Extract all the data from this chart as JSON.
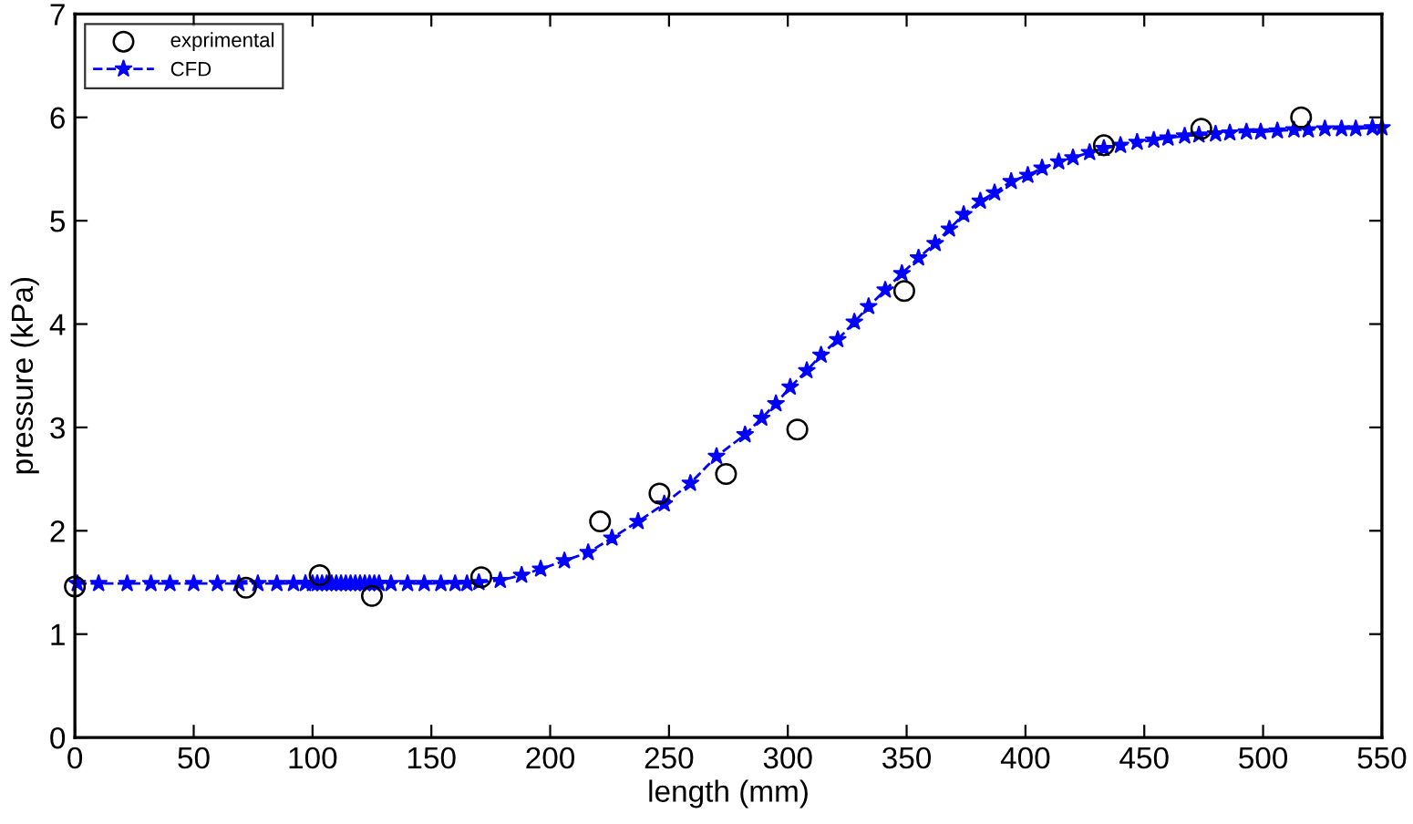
{
  "chart_data": {
    "type": "line",
    "xlabel": "length (mm)",
    "ylabel": "pressure (kPa)",
    "xlim": [
      0,
      550
    ],
    "xticks": [
      0,
      50,
      100,
      150,
      200,
      250,
      300,
      350,
      400,
      450,
      500,
      550
    ],
    "ylim": [
      0,
      7
    ],
    "yticks": [
      0,
      1,
      2,
      3,
      4,
      5,
      6,
      7
    ],
    "grid": false,
    "legend": "top left",
    "series": [
      {
        "name": "exprimental",
        "type": "scatter",
        "marker": "circle",
        "color": "#000000",
        "x": [
          0,
          72,
          103,
          125,
          171,
          221,
          246,
          274,
          304,
          349,
          433,
          474,
          516
        ],
        "values": [
          1.46,
          1.45,
          1.57,
          1.37,
          1.55,
          2.09,
          2.36,
          2.55,
          2.98,
          4.32,
          5.73,
          5.89,
          6.0
        ]
      },
      {
        "name": "CFD",
        "marker": "star",
        "line_style": "dashed",
        "color": "#0000ff",
        "x": [
          1,
          10,
          22,
          32,
          40,
          50,
          60,
          69,
          77,
          85,
          92,
          97,
          100,
          102,
          104,
          106,
          108,
          110,
          112,
          114,
          116,
          118,
          120,
          122,
          124,
          126,
          128,
          133,
          140,
          147,
          154,
          160,
          165,
          170,
          179,
          188,
          196,
          206,
          216,
          226,
          237,
          248,
          259,
          270,
          282,
          289,
          295,
          301,
          308,
          314,
          321,
          328,
          334,
          341,
          348,
          355,
          362,
          368,
          374,
          381,
          387,
          394,
          401,
          407,
          414,
          420,
          427,
          433,
          440,
          447,
          454,
          460,
          467,
          473,
          480,
          486,
          493,
          499,
          506,
          513,
          519,
          526,
          533,
          539,
          546,
          550
        ],
        "values": [
          1.49,
          1.49,
          1.49,
          1.49,
          1.49,
          1.49,
          1.49,
          1.49,
          1.49,
          1.49,
          1.49,
          1.49,
          1.49,
          1.49,
          1.49,
          1.49,
          1.49,
          1.49,
          1.49,
          1.49,
          1.49,
          1.49,
          1.49,
          1.49,
          1.49,
          1.49,
          1.49,
          1.49,
          1.49,
          1.49,
          1.49,
          1.49,
          1.49,
          1.5,
          1.52,
          1.57,
          1.63,
          1.71,
          1.79,
          1.93,
          2.09,
          2.26,
          2.46,
          2.72,
          2.93,
          3.09,
          3.23,
          3.39,
          3.55,
          3.7,
          3.85,
          4.02,
          4.17,
          4.33,
          4.49,
          4.64,
          4.78,
          4.92,
          5.06,
          5.19,
          5.27,
          5.38,
          5.44,
          5.51,
          5.57,
          5.61,
          5.66,
          5.7,
          5.73,
          5.76,
          5.78,
          5.8,
          5.82,
          5.83,
          5.84,
          5.85,
          5.86,
          5.86,
          5.87,
          5.88,
          5.88,
          5.89,
          5.89,
          5.89,
          5.9,
          5.9
        ]
      }
    ]
  }
}
